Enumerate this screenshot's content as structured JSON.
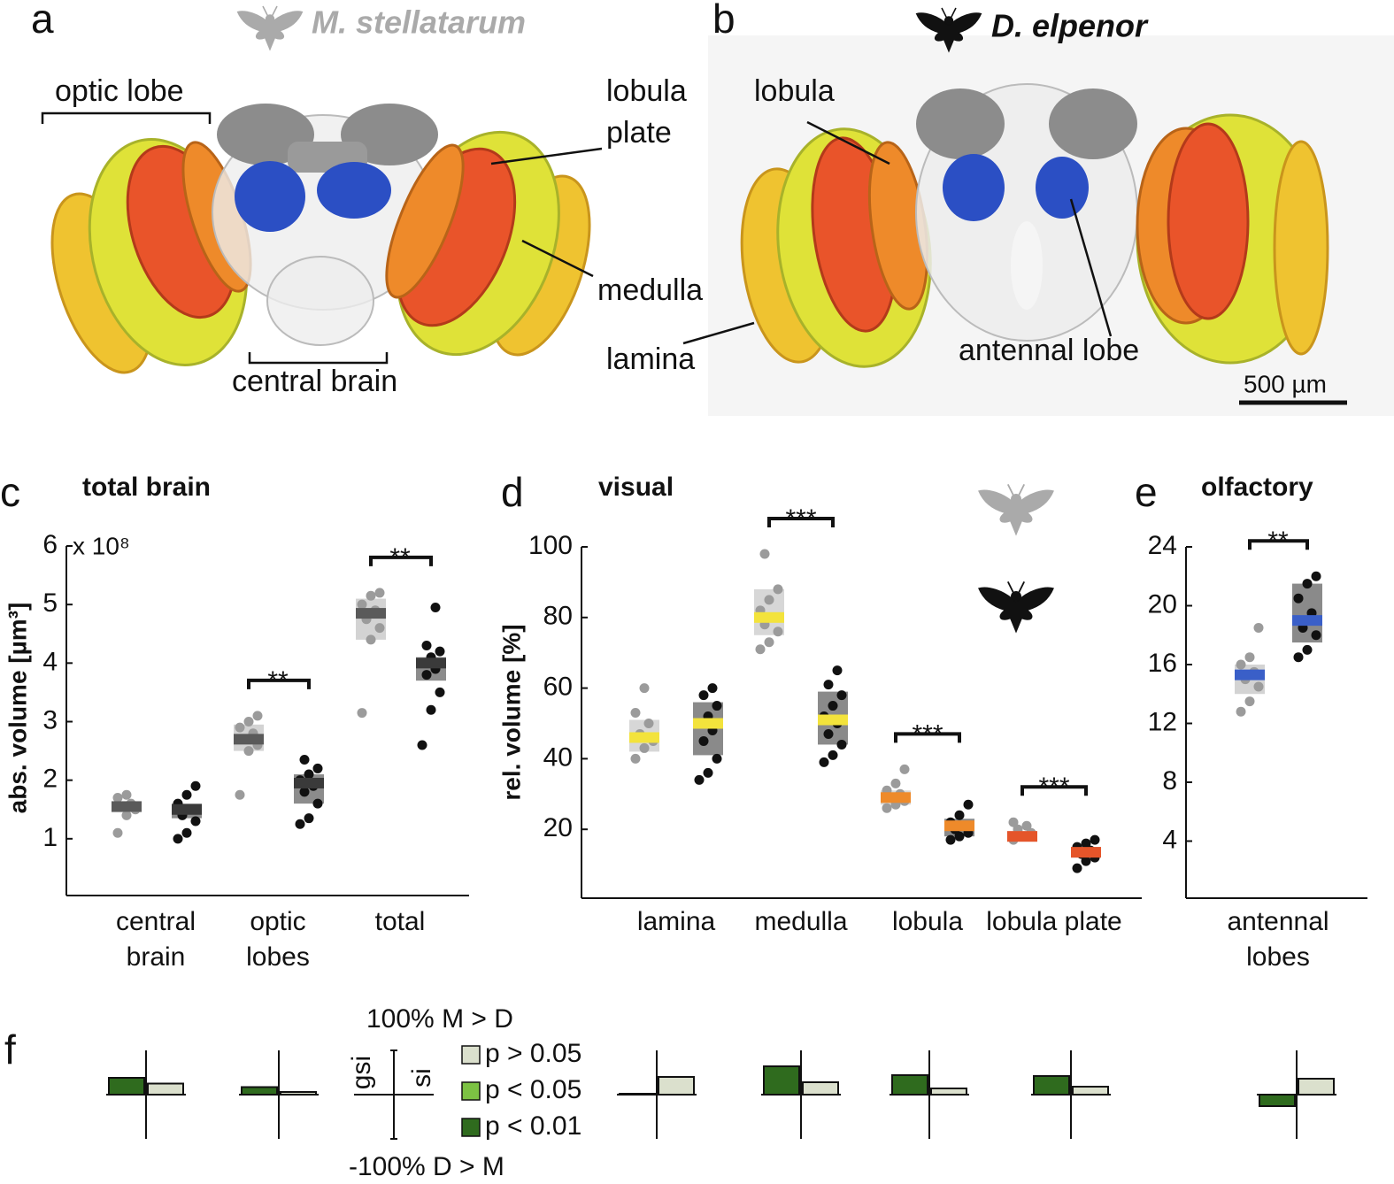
{
  "panel_a": {
    "letter": "a",
    "species": "M. stellatarum",
    "labels": {
      "optic_lobe": "optic lobe",
      "lobula_plate": [
        "lobula",
        "plate"
      ],
      "medulla": "medulla",
      "lamina": "lamina",
      "central_brain": "central brain"
    }
  },
  "panel_b": {
    "letter": "b",
    "species": "D. elpenor",
    "labels": {
      "lobula": "lobula",
      "antennal_lobe": "antennal lobe"
    },
    "scale_bar": "500 µm"
  },
  "chart_data": [
    {
      "type": "box_strip",
      "letter": "c",
      "title": "total brain",
      "ylabel": "abs. volume [µm³]",
      "y_multiplier": "x 10⁸",
      "categories": [
        "central brain",
        "optic lobes",
        "total"
      ],
      "ylim": [
        0,
        6
      ],
      "yticks": [
        1,
        2,
        3,
        4,
        5,
        6
      ],
      "series": [
        {
          "color": "#9b9b9b",
          "box_color": "#d3d3d3",
          "median_colors": [
            "#5a5a5a",
            "#5a5a5a",
            "#5a5a5a"
          ],
          "median": [
            1.55,
            2.7,
            4.85
          ],
          "q1": [
            1.45,
            2.5,
            4.4
          ],
          "q3": [
            1.6,
            2.95,
            5.1
          ],
          "points": [
            [
              1.1,
              1.4,
              1.5,
              1.55,
              1.6,
              1.7,
              1.75
            ],
            [
              1.75,
              2.5,
              2.6,
              2.7,
              2.8,
              2.9,
              3.0,
              3.1
            ],
            [
              3.15,
              4.4,
              4.6,
              4.75,
              4.9,
              5.0,
              5.15,
              5.2
            ]
          ]
        },
        {
          "color": "#111111",
          "box_color": "#8c8c8c",
          "median_colors": [
            "#3a3a3a",
            "#3a3a3a",
            "#3a3a3a"
          ],
          "median": [
            1.5,
            1.95,
            4.0
          ],
          "q1": [
            1.35,
            1.6,
            3.7
          ],
          "q3": [
            1.6,
            2.1,
            4.1
          ],
          "points": [
            [
              1.0,
              1.1,
              1.3,
              1.4,
              1.5,
              1.6,
              1.75,
              1.9
            ],
            [
              1.25,
              1.35,
              1.6,
              1.8,
              1.9,
              2.0,
              2.1,
              2.2,
              2.35
            ],
            [
              2.6,
              3.2,
              3.5,
              3.8,
              3.9,
              4.0,
              4.1,
              4.2,
              4.3,
              4.95
            ]
          ]
        }
      ],
      "significance": [
        null,
        "**",
        "**"
      ]
    },
    {
      "type": "box_strip",
      "letter": "d",
      "title": "visual",
      "ylabel": "rel. volume [%]",
      "categories": [
        "lamina",
        "medulla",
        "lobula",
        "lobula plate"
      ],
      "ylim": [
        0,
        100
      ],
      "yticks": [
        20,
        40,
        60,
        80,
        100
      ],
      "series": [
        {
          "color": "#9b9b9b",
          "box_color": "#d7d7d7",
          "median_colors": [
            "#f3e33c",
            "#f3e33c",
            "#ee8a2a",
            "#e5552a"
          ],
          "median": [
            46,
            80,
            29,
            18
          ],
          "q1": [
            42,
            75,
            27,
            16.5
          ],
          "q3": [
            51,
            88,
            31,
            19.5
          ],
          "points": [
            [
              40,
              43,
              45,
              47,
              50,
              53,
              60
            ],
            [
              71,
              73,
              76,
              78,
              80,
              82,
              85,
              88,
              98
            ],
            [
              26,
              27,
              28,
              29,
              30,
              31,
              33,
              37
            ],
            [
              17,
              18,
              19,
              20,
              21,
              22
            ]
          ]
        },
        {
          "color": "#111111",
          "box_color": "#8a8a8a",
          "median_colors": [
            "#f3e33c",
            "#f3e33c",
            "#ee8a2a",
            "#e5552a"
          ],
          "median": [
            50,
            51,
            21,
            13.5
          ],
          "q1": [
            41,
            44,
            18,
            12
          ],
          "q3": [
            56,
            59,
            23,
            15
          ],
          "points": [
            [
              34,
              36,
              40,
              45,
              48,
              50,
              52,
              55,
              58,
              60
            ],
            [
              39,
              41,
              44,
              47,
              50,
              52,
              55,
              58,
              61,
              65
            ],
            [
              17,
              18,
              19,
              20,
              21,
              22,
              24,
              27
            ],
            [
              9,
              11,
              12,
              13,
              14,
              15,
              16,
              17
            ]
          ]
        }
      ],
      "significance": [
        null,
        "***",
        "***",
        "***"
      ]
    },
    {
      "type": "box_strip",
      "letter": "e",
      "title": "olfactory",
      "categories": [
        "antennal lobes"
      ],
      "ylim": [
        0,
        24
      ],
      "yticks": [
        4,
        8,
        12,
        16,
        20,
        24
      ],
      "series": [
        {
          "color": "#9b9b9b",
          "box_color": "#d3d3d3",
          "median_colors": [
            "#3a5fc8"
          ],
          "median": [
            15.3
          ],
          "q1": [
            14
          ],
          "q3": [
            16
          ],
          "points": [
            [
              12.8,
              13.5,
              14.5,
              15,
              15.5,
              16,
              16.5,
              18.5
            ]
          ]
        },
        {
          "color": "#111111",
          "box_color": "#8a8a8a",
          "median_colors": [
            "#3a5fc8"
          ],
          "median": [
            19
          ],
          "q1": [
            17.5
          ],
          "q3": [
            21.5
          ],
          "points": [
            [
              16.5,
              17,
              18,
              18.5,
              19.5,
              20.5,
              21.5,
              22
            ]
          ]
        }
      ],
      "significance": [
        "**"
      ]
    },
    {
      "type": "index_bars",
      "letter": "f",
      "ylim": [
        -100,
        100
      ],
      "yticks": [
        {
          "value": 100,
          "label": "100% M > D"
        },
        {
          "value": -100,
          "label": "-100% D > M"
        }
      ],
      "bar_labels": [
        "gsi",
        "si"
      ],
      "gsi": [
        38,
        17,
        2,
        64,
        44,
        42,
        -26
      ],
      "si": [
        25,
        6,
        40,
        28,
        14,
        18,
        36
      ],
      "gsi_colors": [
        "#2f6b1e",
        "#2f6b1e",
        "#2f6b1e",
        "#2f6b1e",
        "#2f6b1e",
        "#2f6b1e",
        "#2f6b1e"
      ],
      "si_colors": [
        "#dbe0cd",
        "#dbe0cd",
        "#dbe0cd",
        "#dbe0cd",
        "#dbe0cd",
        "#dbe0cd",
        "#dbe0cd"
      ],
      "legend": [
        {
          "label": "p > 0.05",
          "color": "#dbe0cd"
        },
        {
          "label": "p < 0.05",
          "color": "#7cc243"
        },
        {
          "label": "p < 0.01",
          "color": "#2f6b1e"
        }
      ]
    }
  ]
}
